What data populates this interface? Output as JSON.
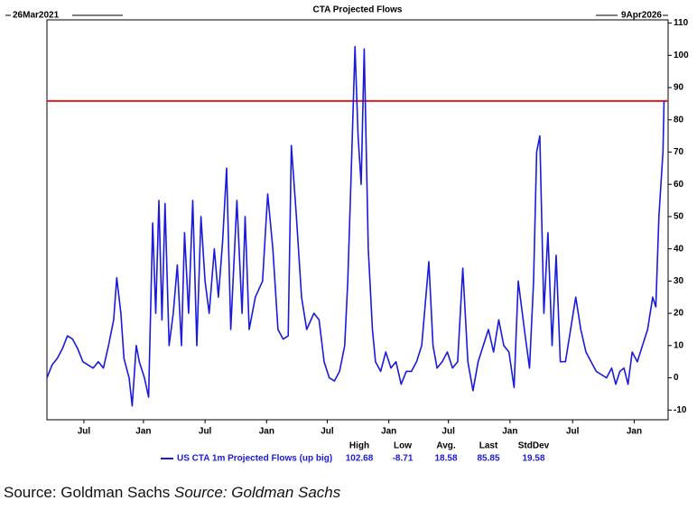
{
  "chart_data": {
    "type": "line",
    "title": "CTA Projected Flows",
    "start_label": "26Mar2021",
    "end_label": "9Apr2026",
    "series": [
      {
        "name": "US CTA 1m Projected Flows (up big)",
        "color": "#1a1adc",
        "x": [
          0,
          0.5,
          1,
          1.5,
          2,
          2.5,
          3,
          3.5,
          4,
          4.5,
          5,
          5.5,
          6,
          6.5,
          6.8,
          7.2,
          7.5,
          8,
          8.3,
          8.7,
          9,
          9.5,
          9.9,
          10.3,
          10.6,
          10.9,
          11.2,
          11.5,
          11.9,
          12.3,
          12.7,
          13.1,
          13.4,
          13.8,
          14.2,
          14.6,
          15,
          15.4,
          15.8,
          16.3,
          16.7,
          17.1,
          17.5,
          17.9,
          18.5,
          19,
          19.3,
          19.7,
          20.3,
          21,
          21.5,
          22,
          22.5,
          23,
          23.5,
          23.8,
          24.3,
          24.8,
          25.3,
          26,
          26.5,
          27,
          27.5,
          28,
          28.5,
          29,
          29.3,
          29.6,
          30,
          30.3,
          30.6,
          30.9,
          31.3,
          31.7,
          32,
          32.5,
          33,
          33.5,
          34,
          34.5,
          35,
          35.5,
          36,
          36.5,
          37.2,
          37.6,
          38,
          38.5,
          39,
          39.5,
          40,
          40.5,
          41,
          41.5,
          42,
          42.5,
          43,
          43.5,
          44,
          44.5,
          45,
          45.5,
          45.9,
          46.5,
          47,
          47.4,
          47.7,
          48,
          48.4,
          48.8,
          49.2,
          49.6,
          50,
          50.5,
          51,
          51.5,
          52,
          52.5,
          53,
          53.5,
          54,
          54.5,
          55,
          55.4,
          55.8,
          56.2,
          56.6,
          57,
          57.5,
          58,
          58.5,
          59,
          59.3,
          59.6,
          60,
          60.1
        ],
        "values": [
          0,
          4,
          6,
          9,
          13,
          12,
          9,
          5,
          4,
          3,
          5,
          3,
          10,
          18,
          31,
          20,
          6,
          0,
          -8.71,
          10,
          5,
          0,
          -6,
          48,
          20,
          55,
          18,
          54,
          10,
          20,
          35,
          10,
          45,
          20,
          55,
          10,
          50,
          30,
          20,
          40,
          25,
          42,
          65,
          15,
          55,
          20,
          50,
          15,
          25,
          30,
          57,
          40,
          15,
          12,
          13,
          72,
          50,
          25,
          15,
          20,
          18,
          5,
          0,
          -1,
          2,
          10,
          30,
          60,
          102.68,
          75,
          60,
          102,
          40,
          15,
          5,
          2,
          8,
          3,
          5,
          -2,
          2,
          2,
          5,
          10,
          36,
          10,
          3,
          5,
          8,
          3,
          5,
          34,
          5,
          -4,
          5,
          10,
          15,
          8,
          18,
          10,
          8,
          -3,
          30,
          15,
          3,
          30,
          70,
          75,
          20,
          45,
          10,
          38,
          5,
          5,
          15,
          25,
          15,
          8,
          5,
          2,
          1,
          0,
          3,
          -2,
          2,
          3,
          -2,
          8,
          5,
          10,
          15,
          25,
          22,
          50,
          70,
          85.85
        ]
      }
    ],
    "xlim": [
      0,
      60.5
    ],
    "xticks": [
      {
        "value": 3.6,
        "label": "Jul"
      },
      {
        "value": 9.4,
        "label": "Jan"
      },
      {
        "value": 15.4,
        "label": "Jul"
      },
      {
        "value": 21.4,
        "label": "Jan"
      },
      {
        "value": 27.3,
        "label": "Jul"
      },
      {
        "value": 33.3,
        "label": "Jan"
      },
      {
        "value": 39.1,
        "label": "Jul"
      },
      {
        "value": 45.1,
        "label": "Jan"
      },
      {
        "value": 51.2,
        "label": "Jul"
      },
      {
        "value": 57.2,
        "label": "Jan"
      }
    ],
    "ylim": [
      -13,
      111
    ],
    "yticks": [
      -10,
      0,
      10,
      20,
      30,
      40,
      50,
      60,
      70,
      80,
      90,
      100,
      110
    ],
    "reference_line": {
      "value": 85.85,
      "color": "#e02020"
    },
    "stats": [
      {
        "label": "High",
        "value": 102.68
      },
      {
        "label": "Low",
        "value": -8.71
      },
      {
        "label": "Avg.",
        "value": 18.58
      },
      {
        "label": "Last",
        "value": 85.85
      },
      {
        "label": "StdDev",
        "value": 19.58
      }
    ]
  },
  "source": {
    "text": "Source: Goldman Sachs",
    "italic_text": "Source: Goldman Sachs"
  }
}
